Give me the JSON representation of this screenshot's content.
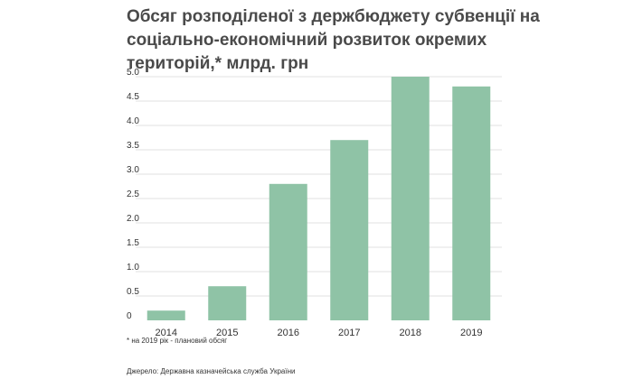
{
  "title_lines": [
    "Обсяг розподіленої з держбюджету субвенції на",
    "соціально-економічний розвиток окремих",
    "територій,* млрд. грн"
  ],
  "footnote": "* на 2019 рік - плановий обсяг",
  "source": "Джерело: Державна казначейська служба України",
  "chart_data": {
    "type": "bar",
    "title": "Обсяг розподіленої з держбюджету субвенції на соціально-економічний розвиток окремих територій,* млрд. грн",
    "categories": [
      "2014",
      "2015",
      "2016",
      "2017",
      "2018",
      "2019"
    ],
    "values": [
      0.2,
      0.7,
      2.8,
      3.7,
      5.0,
      4.8
    ],
    "yticks": [
      "0",
      "0.5",
      "1.0",
      "1.5",
      "2.0",
      "2.5",
      "3.0",
      "3.5",
      "4.0",
      "4.5",
      "5.0"
    ],
    "ylim": [
      0,
      5
    ],
    "xlabel": "",
    "ylabel": "",
    "grid": true,
    "bar_color": "#8fc3a6",
    "grid_color": "#e2e2e2"
  }
}
